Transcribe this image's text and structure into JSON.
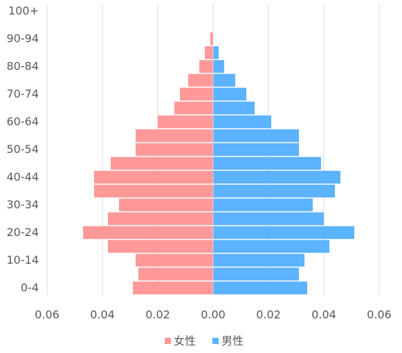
{
  "chart_data": {
    "type": "bar",
    "orientation": "horizontal",
    "subtype": "population-pyramid",
    "categories": [
      "0-4",
      "5-9",
      "10-14",
      "15-19",
      "20-24",
      "25-29",
      "30-34",
      "35-39",
      "40-44",
      "45-49",
      "50-54",
      "55-59",
      "60-64",
      "65-69",
      "70-74",
      "75-79",
      "80-84",
      "85-89",
      "90-94",
      "95-99",
      "100+"
    ],
    "category_tick_labels": [
      "0-4",
      "10-14",
      "20-24",
      "30-34",
      "40-44",
      "50-54",
      "60-64",
      "70-74",
      "80-84",
      "90-94",
      "100+"
    ],
    "series": [
      {
        "name": "女性",
        "color": "#FF9999",
        "side": "left",
        "values": [
          0.029,
          0.027,
          0.028,
          0.038,
          0.047,
          0.038,
          0.034,
          0.043,
          0.043,
          0.037,
          0.028,
          0.028,
          0.02,
          0.014,
          0.012,
          0.009,
          0.005,
          0.003,
          0.001,
          0.0,
          0.0
        ]
      },
      {
        "name": "男性",
        "color": "#5CB3FF",
        "side": "right",
        "values": [
          0.034,
          0.031,
          0.033,
          0.042,
          0.051,
          0.04,
          0.036,
          0.044,
          0.046,
          0.039,
          0.031,
          0.031,
          0.021,
          0.015,
          0.012,
          0.008,
          0.004,
          0.002,
          0.0,
          0.0,
          0.0
        ]
      }
    ],
    "x_ticks": [
      "0.06",
      "0.04",
      "0.02",
      "0.00",
      "0.02",
      "0.04",
      "0.06"
    ],
    "xlim": [
      -0.06,
      0.06
    ],
    "grid": "vertical",
    "legend": "bottom"
  }
}
